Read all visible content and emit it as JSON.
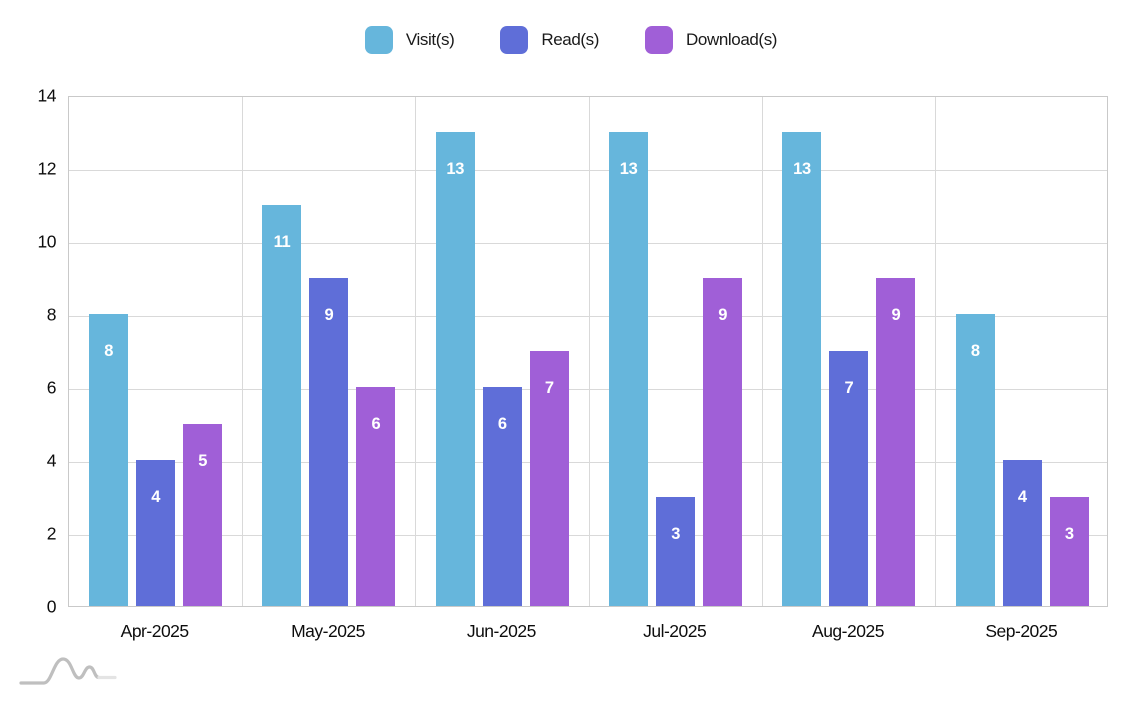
{
  "chart_data": {
    "type": "bar",
    "title": "",
    "categories": [
      "Apr-2025",
      "May-2025",
      "Jun-2025",
      "Jul-2025",
      "Aug-2025",
      "Sep-2025"
    ],
    "series": [
      {
        "name": "Visit(s)",
        "color": "#66B6DC",
        "values": [
          8,
          11,
          13,
          13,
          13,
          8
        ]
      },
      {
        "name": "Read(s)",
        "color": "#5F6ED8",
        "values": [
          4,
          9,
          6,
          3,
          7,
          4
        ]
      },
      {
        "name": "Download(s)",
        "color": "#A05FD7",
        "values": [
          5,
          6,
          7,
          9,
          9,
          3
        ]
      }
    ],
    "ylim": [
      0,
      14
    ],
    "yticks": [
      0,
      2,
      4,
      6,
      8,
      10,
      12,
      14
    ],
    "grid": true,
    "legend_position": "top",
    "value_labels": "white, inside bar near top"
  },
  "style": {
    "gridline_color": "#d9d9d9",
    "border_color": "#c9c9c9",
    "text_color": "#0d0d0d",
    "value_label_color": "#ffffff",
    "logo_color_main": "#bfbfbf",
    "logo_color_tail": "#e4e4e4"
  },
  "footer": {
    "logo_icon": "waves-logo-icon"
  }
}
